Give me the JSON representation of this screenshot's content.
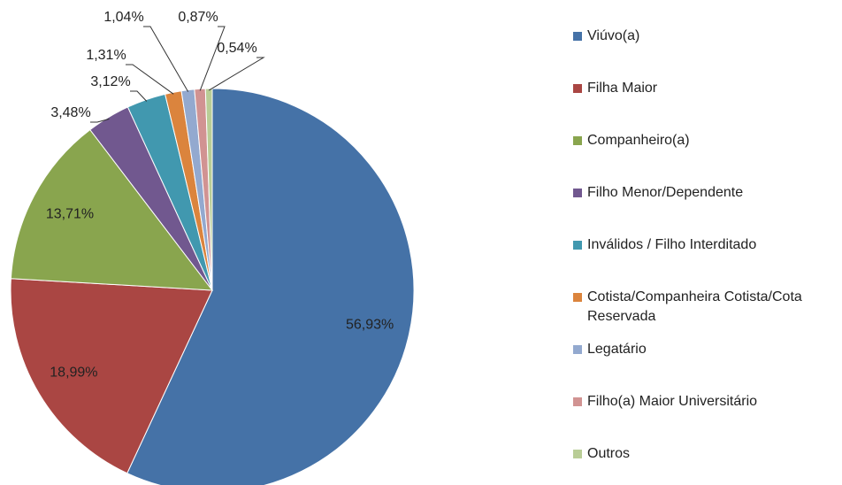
{
  "chart_data": {
    "type": "pie",
    "categories": [
      "Viúvo(a)",
      "Filha Maior",
      "Companheiro(a)",
      "Filho Menor/Dependente",
      "Inválidos / Filho Interditado",
      "Cotista/Companheira Cotista/Cota Reservada",
      "Legatário",
      "Filho(a) Maior Universitário",
      "Outros"
    ],
    "values": [
      56.93,
      18.99,
      13.71,
      3.48,
      3.12,
      1.31,
      1.04,
      0.87,
      0.54
    ],
    "value_labels": [
      "56,93%",
      "18,99%",
      "13,71%",
      "3,48%",
      "3,12%",
      "1,31%",
      "1,04%",
      "0,87%",
      "0,54%"
    ],
    "colors": [
      "#4572a7",
      "#aa4643",
      "#89a54e",
      "#71588f",
      "#4198af",
      "#db843d",
      "#93a9cf",
      "#d19392",
      "#b9cd96"
    ],
    "legend": "right"
  }
}
